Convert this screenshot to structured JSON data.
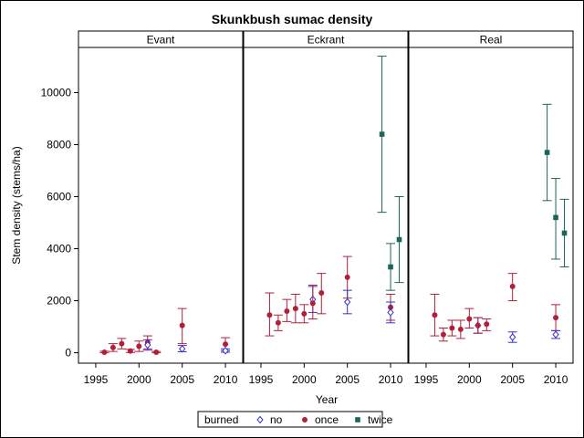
{
  "chart_data": {
    "type": "scatter",
    "title": "Skunkbush sumac density",
    "xlabel": "Year",
    "ylabel": "Stem density (stems/ha)",
    "xlim": [
      1993,
      2012
    ],
    "ylim": [
      -400,
      11700
    ],
    "xticks": [
      1995,
      2000,
      2005,
      2010
    ],
    "yticks": [
      0,
      2000,
      4000,
      6000,
      8000,
      10000
    ],
    "grid": false,
    "legend_position": "bottom-center",
    "legend_title": "burned",
    "groups": [
      {
        "key": "no",
        "label": "no",
        "color": "#3333cc",
        "marker": "diamond-open"
      },
      {
        "key": "once",
        "label": "once",
        "color": "#b0203a",
        "marker": "circle-filled"
      },
      {
        "key": "twice",
        "label": "twice",
        "color": "#1a6658",
        "marker": "square-filled"
      }
    ],
    "panels": [
      {
        "title": "Evant",
        "points": [
          {
            "group": "once",
            "x": 1996,
            "y": 20,
            "lo": 0,
            "hi": 60
          },
          {
            "group": "once",
            "x": 1997,
            "y": 200,
            "lo": 50,
            "hi": 350
          },
          {
            "group": "once",
            "x": 1998,
            "y": 350,
            "lo": 150,
            "hi": 550
          },
          {
            "group": "once",
            "x": 1999,
            "y": 70,
            "lo": 10,
            "hi": 130
          },
          {
            "group": "once",
            "x": 2000,
            "y": 250,
            "lo": 50,
            "hi": 450
          },
          {
            "group": "once",
            "x": 2001,
            "y": 400,
            "lo": 150,
            "hi": 650
          },
          {
            "group": "no",
            "x": 2001,
            "y": 300,
            "lo": 100,
            "hi": 500
          },
          {
            "group": "once",
            "x": 2002,
            "y": 20,
            "lo": 0,
            "hi": 50
          },
          {
            "group": "once",
            "x": 2005,
            "y": 1050,
            "lo": 350,
            "hi": 1700
          },
          {
            "group": "no",
            "x": 2005,
            "y": 150,
            "lo": 40,
            "hi": 280
          },
          {
            "group": "once",
            "x": 2010,
            "y": 330,
            "lo": 80,
            "hi": 580
          },
          {
            "group": "no",
            "x": 2010,
            "y": 80,
            "lo": 20,
            "hi": 150
          }
        ]
      },
      {
        "title": "Eckrant",
        "points": [
          {
            "group": "once",
            "x": 1996,
            "y": 1450,
            "lo": 650,
            "hi": 2300
          },
          {
            "group": "once",
            "x": 1997,
            "y": 1150,
            "lo": 850,
            "hi": 1450
          },
          {
            "group": "once",
            "x": 1998,
            "y": 1600,
            "lo": 1200,
            "hi": 2050
          },
          {
            "group": "once",
            "x": 1999,
            "y": 1700,
            "lo": 1150,
            "hi": 2250
          },
          {
            "group": "once",
            "x": 2000,
            "y": 1500,
            "lo": 1150,
            "hi": 1850
          },
          {
            "group": "no",
            "x": 2001,
            "y": 2050,
            "lo": 1550,
            "hi": 2550
          },
          {
            "group": "once",
            "x": 2001,
            "y": 1900,
            "lo": 1300,
            "hi": 2600
          },
          {
            "group": "once",
            "x": 2002,
            "y": 2300,
            "lo": 1500,
            "hi": 3050
          },
          {
            "group": "once",
            "x": 2005,
            "y": 2900,
            "lo": 2100,
            "hi": 3700
          },
          {
            "group": "no",
            "x": 2005,
            "y": 1950,
            "lo": 1500,
            "hi": 2400
          },
          {
            "group": "twice",
            "x": 2009,
            "y": 8400,
            "lo": 5400,
            "hi": 11400
          },
          {
            "group": "twice",
            "x": 2010,
            "y": 3300,
            "lo": 2400,
            "hi": 4200
          },
          {
            "group": "once",
            "x": 2010,
            "y": 1750,
            "lo": 1250,
            "hi": 2250
          },
          {
            "group": "no",
            "x": 2010,
            "y": 1550,
            "lo": 1150,
            "hi": 1950
          },
          {
            "group": "twice",
            "x": 2011,
            "y": 4350,
            "lo": 2700,
            "hi": 6000
          }
        ]
      },
      {
        "title": "Real",
        "points": [
          {
            "group": "once",
            "x": 1996,
            "y": 1450,
            "lo": 650,
            "hi": 2250
          },
          {
            "group": "once",
            "x": 1997,
            "y": 700,
            "lo": 450,
            "hi": 950
          },
          {
            "group": "once",
            "x": 1998,
            "y": 950,
            "lo": 650,
            "hi": 1250
          },
          {
            "group": "once",
            "x": 1999,
            "y": 900,
            "lo": 550,
            "hi": 1250
          },
          {
            "group": "once",
            "x": 2000,
            "y": 1300,
            "lo": 950,
            "hi": 1700
          },
          {
            "group": "no",
            "x": 2001,
            "y": 1050,
            "lo": 750,
            "hi": 1350
          },
          {
            "group": "once",
            "x": 2001,
            "y": 1050,
            "lo": 750,
            "hi": 1350
          },
          {
            "group": "once",
            "x": 2002,
            "y": 1100,
            "lo": 850,
            "hi": 1300
          },
          {
            "group": "once",
            "x": 2005,
            "y": 2550,
            "lo": 2000,
            "hi": 3050
          },
          {
            "group": "no",
            "x": 2005,
            "y": 600,
            "lo": 400,
            "hi": 800
          },
          {
            "group": "twice",
            "x": 2009,
            "y": 7700,
            "lo": 5850,
            "hi": 9550
          },
          {
            "group": "twice",
            "x": 2010,
            "y": 5200,
            "lo": 3600,
            "hi": 6700
          },
          {
            "group": "once",
            "x": 2010,
            "y": 1350,
            "lo": 850,
            "hi": 1850
          },
          {
            "group": "no",
            "x": 2010,
            "y": 700,
            "lo": 550,
            "hi": 850
          },
          {
            "group": "twice",
            "x": 2011,
            "y": 4600,
            "lo": 3300,
            "hi": 5900
          }
        ]
      }
    ]
  }
}
